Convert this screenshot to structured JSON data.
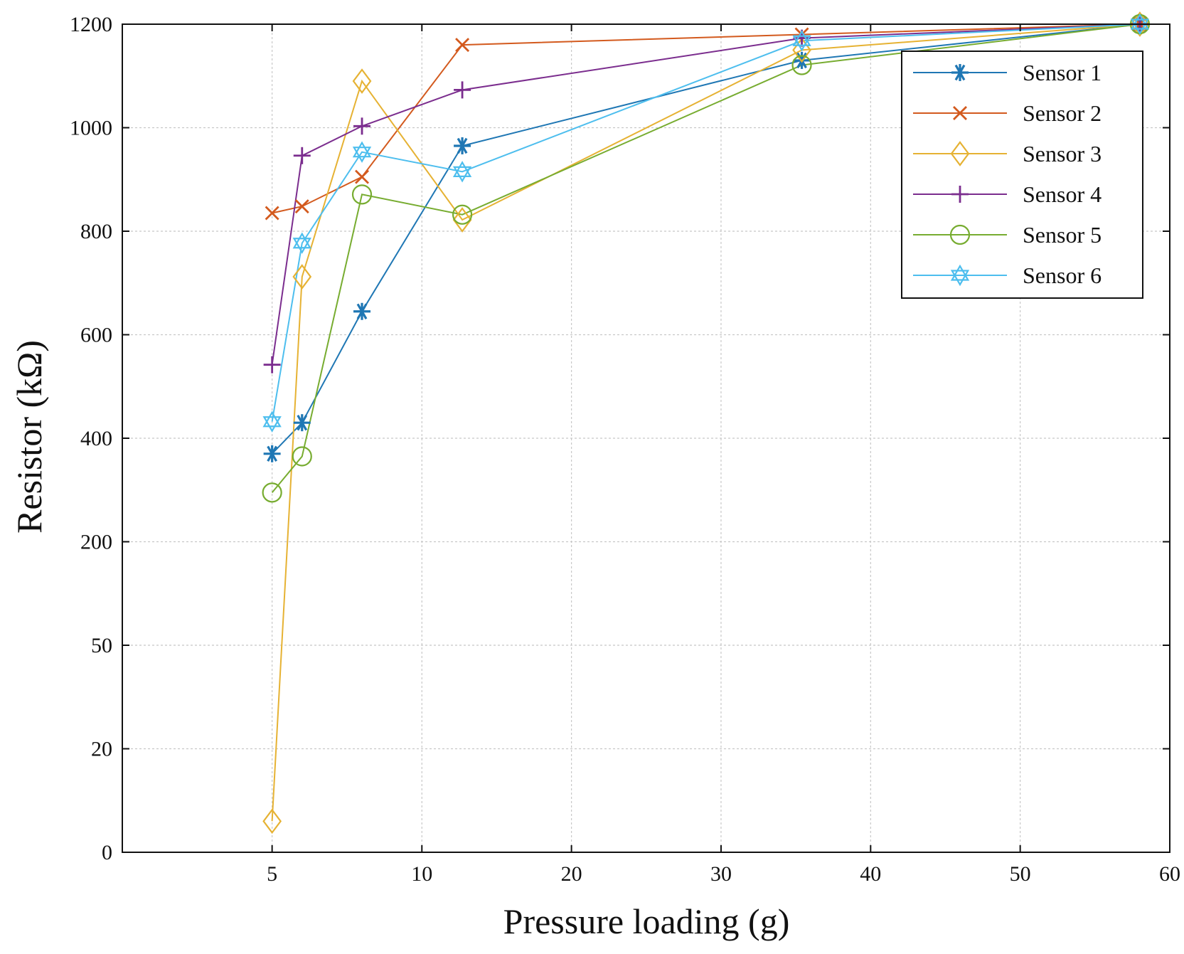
{
  "chart_data": {
    "type": "line",
    "title": "",
    "xlabel": "Pressure loading (g)",
    "ylabel": "Resistor (kΩ)",
    "x_ticks": [
      {
        "value": 5,
        "label": "5"
      },
      {
        "value": 10,
        "label": "10"
      },
      {
        "value": 20,
        "label": "20"
      },
      {
        "value": 30,
        "label": "30"
      },
      {
        "value": 40,
        "label": "40"
      },
      {
        "value": 50,
        "label": "50"
      },
      {
        "value": 60,
        "label": "60"
      }
    ],
    "y_ticks": [
      {
        "value": 0,
        "label": "0"
      },
      {
        "value": 20,
        "label": "20"
      },
      {
        "value": 50,
        "label": "50"
      },
      {
        "value": 200,
        "label": "200"
      },
      {
        "value": 400,
        "label": "400"
      },
      {
        "value": 600,
        "label": "600"
      },
      {
        "value": 800,
        "label": "800"
      },
      {
        "value": 1000,
        "label": "1000"
      },
      {
        "value": 1200,
        "label": "1200"
      }
    ],
    "grid": true,
    "legend_position": "top-right",
    "x_axis_note": "piecewise scale: equal spacing between ticks 5 and 10, then linear spacing 10 to 60 (first interval spans from 0)",
    "y_axis_note": "piecewise scale: each listed tick equally spaced",
    "series": [
      {
        "name": "Sensor 1",
        "color": "#1f77b4",
        "marker": "asterisk",
        "points": [
          [
            5,
            370
          ],
          [
            6,
            430
          ],
          [
            8,
            645
          ],
          [
            12.7,
            965
          ],
          [
            35.4,
            1130
          ],
          [
            58,
            1200
          ]
        ]
      },
      {
        "name": "Sensor 2",
        "color": "#d35a1e",
        "marker": "x",
        "points": [
          [
            5,
            835
          ],
          [
            6,
            848
          ],
          [
            8,
            905
          ],
          [
            12.7,
            1160
          ],
          [
            35.4,
            1180
          ],
          [
            58,
            1200
          ]
        ]
      },
      {
        "name": "Sensor 3",
        "color": "#e6b233",
        "marker": "diamond",
        "points": [
          [
            5,
            6
          ],
          [
            6,
            712
          ],
          [
            8,
            1090
          ],
          [
            12.7,
            822
          ],
          [
            35.4,
            1150
          ],
          [
            58,
            1200
          ]
        ]
      },
      {
        "name": "Sensor 4",
        "color": "#7b2d8e",
        "marker": "plus",
        "points": [
          [
            5,
            542
          ],
          [
            6,
            946
          ],
          [
            8,
            1003
          ],
          [
            12.7,
            1073
          ],
          [
            35.4,
            1173
          ],
          [
            58,
            1200
          ]
        ]
      },
      {
        "name": "Sensor 5",
        "color": "#77ac30",
        "marker": "circle",
        "points": [
          [
            5,
            295
          ],
          [
            6,
            365
          ],
          [
            8,
            871
          ],
          [
            12.7,
            832
          ],
          [
            35.4,
            1121
          ],
          [
            58,
            1200
          ]
        ]
      },
      {
        "name": "Sensor 6",
        "color": "#4dbeee",
        "marker": "hexagram",
        "points": [
          [
            5,
            432
          ],
          [
            6,
            777
          ],
          [
            8,
            953
          ],
          [
            12.7,
            915
          ],
          [
            35.4,
            1168
          ],
          [
            58,
            1200
          ]
        ]
      }
    ]
  }
}
